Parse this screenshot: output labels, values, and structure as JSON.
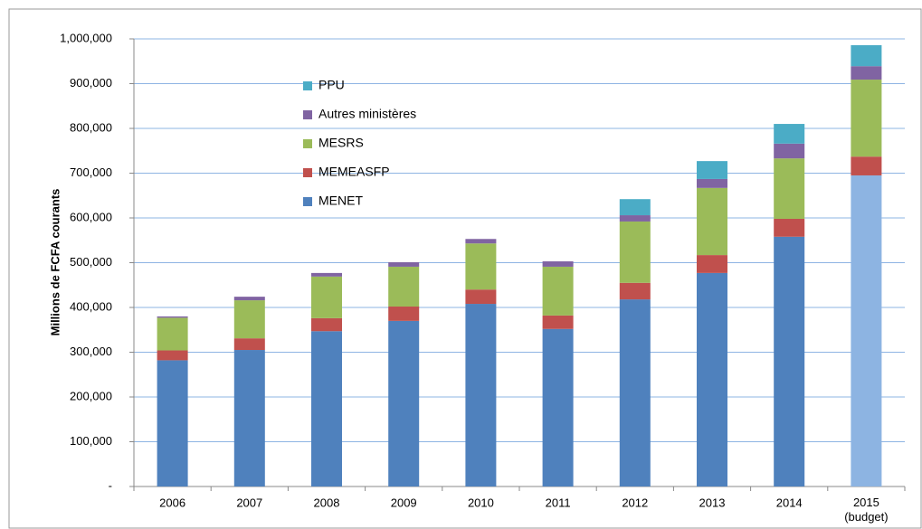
{
  "chart_data": {
    "type": "stacked_bar",
    "y_label": "Millions de FCFA courants",
    "categories": [
      "2006",
      "2007",
      "2008",
      "2009",
      "2010",
      "2011",
      "2012",
      "2013",
      "2014",
      "2015 (budget)"
    ],
    "series": [
      {
        "name": "MENET",
        "color": "#4f81bd",
        "colors": [
          "#4f81bd",
          "#4f81bd",
          "#4f81bd",
          "#4f81bd",
          "#4f81bd",
          "#4f81bd",
          "#4f81bd",
          "#4f81bd",
          "#4f81bd",
          "#8db4e2"
        ],
        "values": [
          282000,
          305000,
          347000,
          370000,
          408000,
          352000,
          418000,
          477000,
          558000,
          695000
        ]
      },
      {
        "name": "MEMEASFP",
        "color": "#c0504d",
        "values": [
          22000,
          26000,
          29000,
          32000,
          32000,
          30000,
          37000,
          40000,
          40000,
          42000
        ]
      },
      {
        "name": "MESRS",
        "color": "#9bbb59",
        "values": [
          73000,
          85000,
          93000,
          89000,
          103000,
          109000,
          137000,
          150000,
          135000,
          172000
        ]
      },
      {
        "name": "Autres ministères",
        "color": "#8064a2",
        "values": [
          3000,
          8000,
          8000,
          10000,
          10000,
          12000,
          14000,
          20000,
          33000,
          30000
        ]
      },
      {
        "name": "PPU",
        "color": "#4bacc6",
        "values": [
          0,
          0,
          0,
          0,
          0,
          0,
          36000,
          40000,
          44000,
          47000
        ]
      }
    ],
    "ylim": [
      0,
      1000000
    ],
    "yticks": [
      {
        "value": 0,
        "label": "-"
      },
      {
        "value": 100000,
        "label": "100,000"
      },
      {
        "value": 200000,
        "label": "200,000"
      },
      {
        "value": 300000,
        "label": "300,000"
      },
      {
        "value": 400000,
        "label": "400,000"
      },
      {
        "value": 500000,
        "label": "500,000"
      },
      {
        "value": 600000,
        "label": "600,000"
      },
      {
        "value": 700000,
        "label": "700,000"
      },
      {
        "value": 800000,
        "label": "800,000"
      },
      {
        "value": 900000,
        "label": "900,000"
      },
      {
        "value": 1000000,
        "label": "1,000,000"
      }
    ],
    "grid": true,
    "legend": "top-left"
  }
}
